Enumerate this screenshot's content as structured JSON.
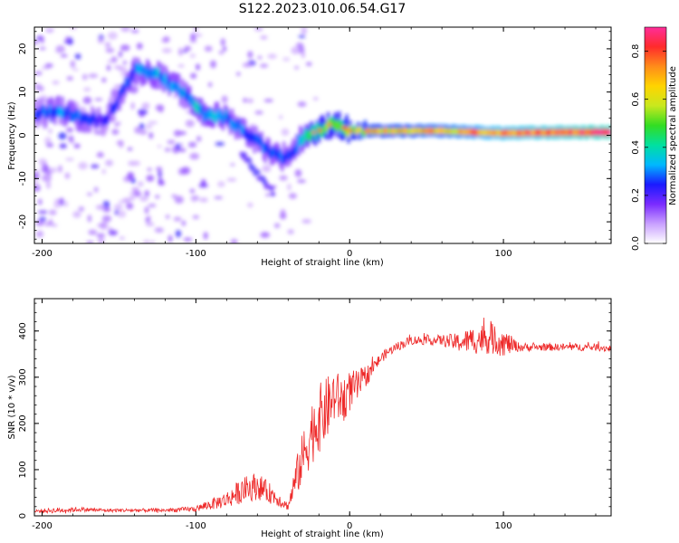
{
  "figure_title": "S122.2023.010.06.54.G17",
  "colors": {
    "snr_line": "#ee2a2a",
    "axis": "#000000",
    "spectrogram_stops": [
      "#ffffff",
      "#c9a0ff",
      "#7a2bff",
      "#1a1aff",
      "#00b8ff",
      "#00e0a0",
      "#33dd22",
      "#c8e81e",
      "#ffd400",
      "#ff8c1a",
      "#ff2b2b",
      "#ff2d9a"
    ]
  },
  "chart_data": [
    {
      "type": "heatmap",
      "xlabel": "Height of straight line (km)",
      "ylabel": "Frequency (Hz)",
      "xlim": [
        -205,
        170
      ],
      "ylim": [
        -25,
        25
      ],
      "xticks": [
        -200,
        -100,
        0,
        100
      ],
      "yticks": [
        -20,
        -10,
        0,
        10,
        20
      ],
      "colorbar": {
        "label": "Normalized spectral amplitude",
        "range": [
          0,
          0.9
        ],
        "ticks": [
          "0.0",
          "0.2",
          "0.4",
          "0.6",
          "0.8"
        ]
      },
      "ridge": {
        "description_points_x": [
          -205,
          -190,
          -175,
          -160,
          -140,
          -125,
          -110,
          -95,
          -80,
          -65,
          -55,
          -45,
          -38,
          -30,
          -20,
          -10,
          0,
          20,
          60,
          100,
          140,
          170
        ],
        "description_points_y": [
          5,
          6,
          4,
          3,
          15,
          14,
          10,
          5,
          4,
          0,
          -3,
          -5,
          -4,
          0,
          1,
          3,
          1,
          1,
          1,
          0.5,
          0.7,
          0.7
        ],
        "amplitude": [
          0.25,
          0.3,
          0.28,
          0.2,
          0.3,
          0.32,
          0.3,
          0.35,
          0.3,
          0.28,
          0.28,
          0.3,
          0.25,
          0.4,
          0.5,
          0.5,
          0.55,
          0.6,
          0.65,
          0.75,
          0.8,
          0.85
        ]
      },
      "secondary_branch": {
        "x": [
          -70,
          -62,
          -55,
          -50
        ],
        "y": [
          -4,
          -8,
          -11,
          -13
        ],
        "amplitude": [
          0.25,
          0.3,
          0.28,
          0.25
        ]
      }
    },
    {
      "type": "line",
      "xlabel": "Height of straight line (km)",
      "ylabel": "SNR (10 * v/v)",
      "xlim": [
        -205,
        170
      ],
      "ylim": [
        0,
        470
      ],
      "xticks": [
        -200,
        -100,
        0,
        100
      ],
      "yticks": [
        0,
        100,
        200,
        300,
        400
      ],
      "series": [
        {
          "x": [
            -205,
            -190,
            -175,
            -160,
            -140,
            -120,
            -100,
            -90,
            -80,
            -70,
            -60,
            -50,
            -40,
            -35,
            -30,
            -25,
            -20,
            -15,
            -10,
            -5,
            0,
            5,
            10,
            15,
            20,
            25,
            30,
            40,
            50,
            60,
            70,
            80,
            90,
            100,
            110,
            120,
            140,
            160,
            170
          ],
          "y": [
            10,
            12,
            14,
            12,
            12,
            12,
            15,
            25,
            35,
            55,
            65,
            45,
            20,
            80,
            130,
            180,
            210,
            230,
            260,
            250,
            270,
            280,
            300,
            320,
            340,
            355,
            365,
            380,
            380,
            380,
            375,
            380,
            385,
            375,
            365,
            365,
            365,
            365,
            362
          ],
          "noise": [
            4,
            6,
            5,
            4,
            4,
            4,
            6,
            12,
            18,
            28,
            30,
            20,
            8,
            40,
            60,
            70,
            75,
            70,
            60,
            50,
            45,
            35,
            25,
            15,
            12,
            10,
            10,
            10,
            10,
            12,
            20,
            30,
            35,
            30,
            10,
            8,
            8,
            8,
            8
          ]
        }
      ]
    }
  ]
}
